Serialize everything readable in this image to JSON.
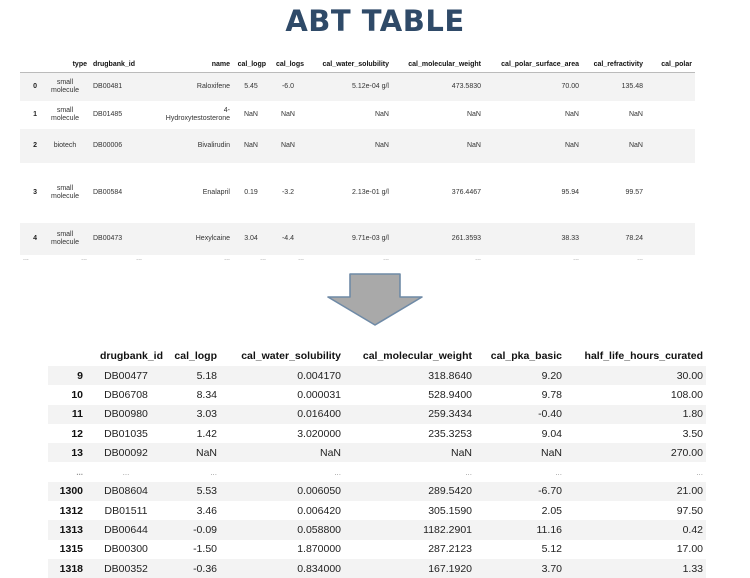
{
  "title": "ABT TABLE",
  "top_table": {
    "columns": [
      "",
      "type",
      "drugbank_id",
      "name",
      "cal_logp",
      "cal_logs",
      "cal_water_solubility",
      "cal_molecular_weight",
      "cal_polar_surface_area",
      "cal_refractivity",
      "cal_polar"
    ],
    "rows": [
      {
        "index": "0",
        "type_line1": "small",
        "type_line2": "molecule",
        "drugbank_id": "DB00481",
        "name_line1": "",
        "name_line2": "Raloxifene",
        "cal_logp": "5.45",
        "cal_logs": "-6.0",
        "cal_water_solubility": "5.12e-04 g/l",
        "cal_molecular_weight": "473.5830",
        "cal_polar_surface_area": "70.00",
        "cal_refractivity": "135.48",
        "cal_polar": ""
      },
      {
        "index": "1",
        "type_line1": "small",
        "type_line2": "molecule",
        "drugbank_id": "DB01485",
        "name_line1": "4-",
        "name_line2": "Hydroxytestosterone",
        "cal_logp": "NaN",
        "cal_logs": "NaN",
        "cal_water_solubility": "NaN",
        "cal_molecular_weight": "NaN",
        "cal_polar_surface_area": "NaN",
        "cal_refractivity": "NaN",
        "cal_polar": ""
      },
      {
        "index": "2",
        "type_line1": "biotech",
        "type_line2": "",
        "drugbank_id": "DB00006",
        "name_line1": "",
        "name_line2": "Bivalirudin",
        "cal_logp": "NaN",
        "cal_logs": "NaN",
        "cal_water_solubility": "NaN",
        "cal_molecular_weight": "NaN",
        "cal_polar_surface_area": "NaN",
        "cal_refractivity": "NaN",
        "cal_polar": ""
      },
      {
        "index": "3",
        "type_line1": "small",
        "type_line2": "molecule",
        "drugbank_id": "DB00584",
        "name_line1": "",
        "name_line2": "Enalapril",
        "cal_logp": "0.19",
        "cal_logs": "-3.2",
        "cal_water_solubility": "2.13e-01 g/l",
        "cal_molecular_weight": "376.4467",
        "cal_polar_surface_area": "95.94",
        "cal_refractivity": "99.57",
        "cal_polar": ""
      },
      {
        "index": "4",
        "type_line1": "small",
        "type_line2": "molecule",
        "drugbank_id": "DB00473",
        "name_line1": "",
        "name_line2": "Hexylcaine",
        "cal_logp": "3.04",
        "cal_logs": "-4.4",
        "cal_water_solubility": "9.71e-03 g/l",
        "cal_molecular_weight": "261.3593",
        "cal_polar_surface_area": "38.33",
        "cal_refractivity": "78.24",
        "cal_polar": ""
      }
    ],
    "ellipsis": "..."
  },
  "arrow_icon": "down-arrow-icon",
  "bottom_table": {
    "columns": [
      "",
      "drugbank_id",
      "cal_logp",
      "cal_water_solubility",
      "cal_molecular_weight",
      "cal_pka_basic",
      "half_life_hours_curated"
    ],
    "rows": [
      {
        "index": "9",
        "drugbank_id": "DB00477",
        "cal_logp": "5.18",
        "cal_water_solubility": "0.004170",
        "cal_molecular_weight": "318.8640",
        "cal_pka_basic": "9.20",
        "half_life_hours_curated": "30.00"
      },
      {
        "index": "10",
        "drugbank_id": "DB06708",
        "cal_logp": "8.34",
        "cal_water_solubility": "0.000031",
        "cal_molecular_weight": "528.9400",
        "cal_pka_basic": "9.78",
        "half_life_hours_curated": "108.00"
      },
      {
        "index": "11",
        "drugbank_id": "DB00980",
        "cal_logp": "3.03",
        "cal_water_solubility": "0.016400",
        "cal_molecular_weight": "259.3434",
        "cal_pka_basic": "-0.40",
        "half_life_hours_curated": "1.80"
      },
      {
        "index": "12",
        "drugbank_id": "DB01035",
        "cal_logp": "1.42",
        "cal_water_solubility": "3.020000",
        "cal_molecular_weight": "235.3253",
        "cal_pka_basic": "9.04",
        "half_life_hours_curated": "3.50"
      },
      {
        "index": "13",
        "drugbank_id": "DB00092",
        "cal_logp": "NaN",
        "cal_water_solubility": "NaN",
        "cal_molecular_weight": "NaN",
        "cal_pka_basic": "NaN",
        "half_life_hours_curated": "270.00"
      },
      {
        "index": "...",
        "drugbank_id": "...",
        "cal_logp": "...",
        "cal_water_solubility": "...",
        "cal_molecular_weight": "...",
        "cal_pka_basic": "...",
        "half_life_hours_curated": "..."
      },
      {
        "index": "1300",
        "drugbank_id": "DB08604",
        "cal_logp": "5.53",
        "cal_water_solubility": "0.006050",
        "cal_molecular_weight": "289.5420",
        "cal_pka_basic": "-6.70",
        "half_life_hours_curated": "21.00"
      },
      {
        "index": "1312",
        "drugbank_id": "DB01511",
        "cal_logp": "3.46",
        "cal_water_solubility": "0.006420",
        "cal_molecular_weight": "305.1590",
        "cal_pka_basic": "2.05",
        "half_life_hours_curated": "97.50"
      },
      {
        "index": "1313",
        "drugbank_id": "DB00644",
        "cal_logp": "-0.09",
        "cal_water_solubility": "0.058800",
        "cal_molecular_weight": "1182.2901",
        "cal_pka_basic": "11.16",
        "half_life_hours_curated": "0.42"
      },
      {
        "index": "1315",
        "drugbank_id": "DB00300",
        "cal_logp": "-1.50",
        "cal_water_solubility": "1.870000",
        "cal_molecular_weight": "287.2123",
        "cal_pka_basic": "5.12",
        "half_life_hours_curated": "17.00"
      },
      {
        "index": "1318",
        "drugbank_id": "DB00352",
        "cal_logp": "-0.36",
        "cal_water_solubility": "0.834000",
        "cal_molecular_weight": "167.1920",
        "cal_pka_basic": "3.70",
        "half_life_hours_curated": "1.33"
      }
    ]
  },
  "colors": {
    "title": "#2f4a68",
    "arrow_fill": "#a9a9a9",
    "arrow_stroke": "#6f8aa6",
    "row_stripe": "#f3f3f3"
  }
}
